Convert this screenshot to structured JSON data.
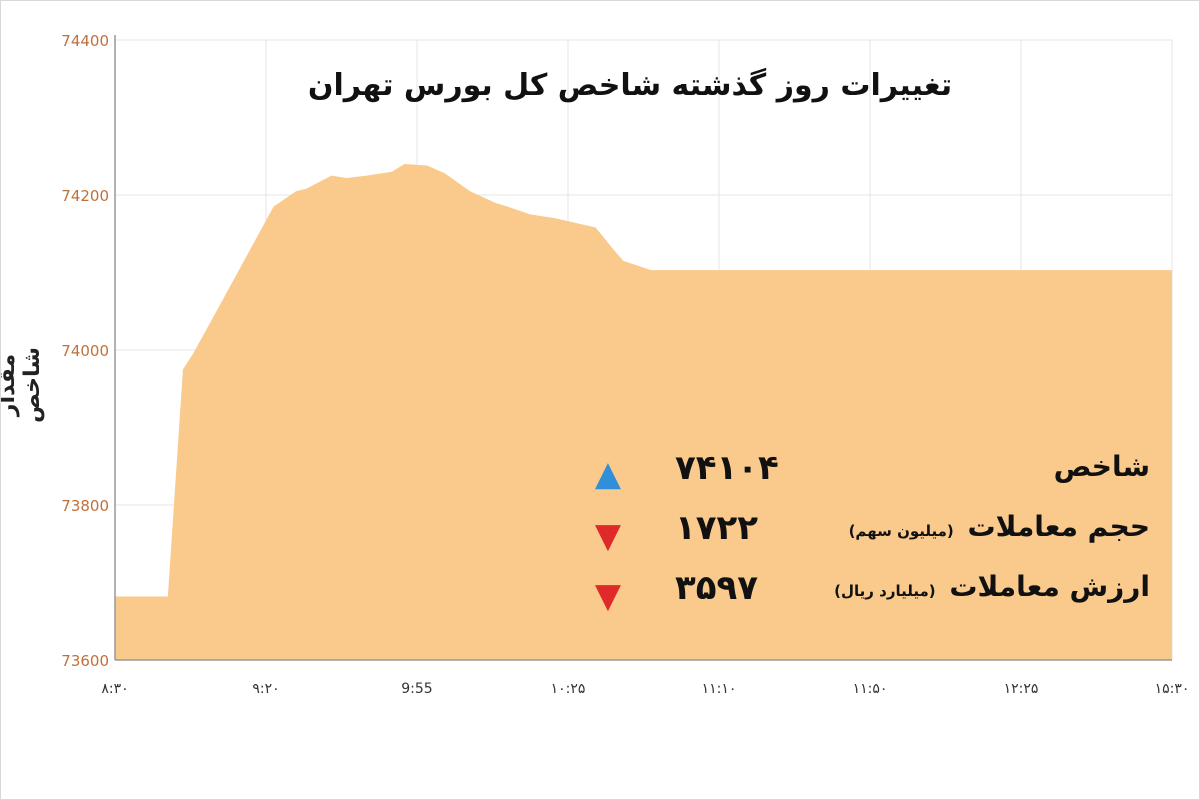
{
  "title": "تغییرات روز گذشته شاخص کل بورس تهران",
  "ylabel": "مقدار شاخص",
  "info": [
    {
      "label": "شاخص",
      "unit": "",
      "value": "۷۴۱۰۴",
      "direction": "up"
    },
    {
      "label": "حجم معاملات",
      "unit": "(میلیون سهم)",
      "value": "۱۷۲۲",
      "direction": "down"
    },
    {
      "label": "ارزش معاملات",
      "unit": "(میلیارد ریال)",
      "value": "۳۵۹۷",
      "direction": "down"
    }
  ],
  "colors": {
    "area_fill": "#f9ca8c",
    "tick_label": "#c0703a",
    "arrow_up": "#2f8fd8",
    "arrow_down": "#e02a2a",
    "grid": "#e6e6e6"
  },
  "chart_data": {
    "type": "area",
    "title": "تغییرات روز گذشته شاخص کل بورس تهران",
    "ylabel": "مقدار شاخص",
    "xlabel": "",
    "ylim": [
      73600,
      74400
    ],
    "yticks": [
      73600,
      73800,
      74000,
      74200,
      74400
    ],
    "ytick_labels": [
      "73600",
      "73800",
      "74000",
      "74200",
      "74400"
    ],
    "xtick_labels": [
      "۸:۳۰",
      "۹:۲۰",
      "9:55",
      "۱۰:۲۵",
      "۱۱:۱۰",
      "۱۱:۵۰",
      "۱۲:۲۵",
      "۱۵:۳۰"
    ],
    "grid": true,
    "x_minutes": [
      510,
      526,
      528,
      531,
      537,
      541,
      552,
      573,
      582,
      586,
      596,
      602,
      610,
      620,
      625,
      634,
      641,
      651,
      661,
      666,
      675,
      685,
      701,
      708,
      712,
      723,
      930
    ],
    "values": [
      73682,
      73682,
      73682,
      73682,
      73975,
      73995,
      74060,
      74185,
      74205,
      74208,
      74225,
      74222,
      74225,
      74230,
      74240,
      74238,
      74228,
      74205,
      74190,
      74185,
      74175,
      74170,
      74158,
      74130,
      74115,
      74103,
      74103
    ]
  }
}
